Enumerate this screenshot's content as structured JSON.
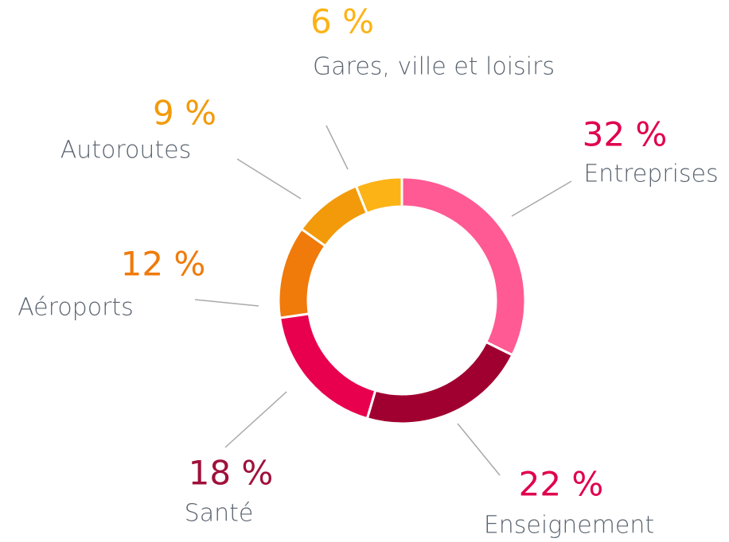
{
  "chart_data": {
    "type": "donut",
    "categories": [
      "Entreprises",
      "Enseignement",
      "Santé",
      "Aéroports",
      "Autoroutes",
      "Gares, ville et loisirs"
    ],
    "values": [
      32,
      22,
      18,
      12,
      9,
      6
    ],
    "value_labels": [
      "32 %",
      "22 %",
      "18 %",
      "12 %",
      "9 %",
      "6 %"
    ],
    "colors": [
      "#ff5a93",
      "#a0002f",
      "#e8004e",
      "#f07a0a",
      "#f29a0a",
      "#fcb316"
    ],
    "label_colors": [
      "#e0004d",
      "#e0004d",
      "#a0103a",
      "#f07a0a",
      "#f29a0a",
      "#fcb316"
    ]
  }
}
